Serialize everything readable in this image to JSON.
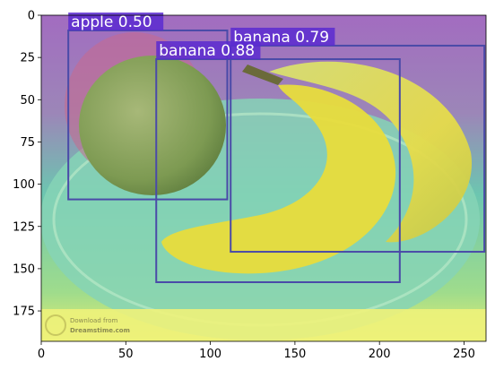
{
  "image": {
    "width_units": 263,
    "height_units": 193,
    "x_ticks": [
      0,
      50,
      100,
      150,
      200,
      250
    ],
    "y_ticks": [
      0,
      25,
      50,
      75,
      100,
      125,
      150,
      175
    ],
    "watermark_text": [
      "Download from",
      "Dreamstime.com"
    ],
    "colors": {
      "box_stroke": "#4a4aa8",
      "label_bg": "#5a2ad0",
      "overlay_top": "#a26cc0",
      "overlay_mid": "#5ac8b0",
      "overlay_bottom": "#e6ee70"
    }
  },
  "detections": [
    {
      "label": "apple",
      "score": "0.50",
      "x1": 16,
      "y1": 9,
      "x2": 110,
      "y2": 109
    },
    {
      "label": "banana",
      "score": "0.79",
      "x1": 112,
      "y1": 18,
      "x2": 262,
      "y2": 140
    },
    {
      "label": "banana",
      "score": "0.88",
      "x1": 68,
      "y1": 26,
      "x2": 212,
      "y2": 158
    }
  ]
}
